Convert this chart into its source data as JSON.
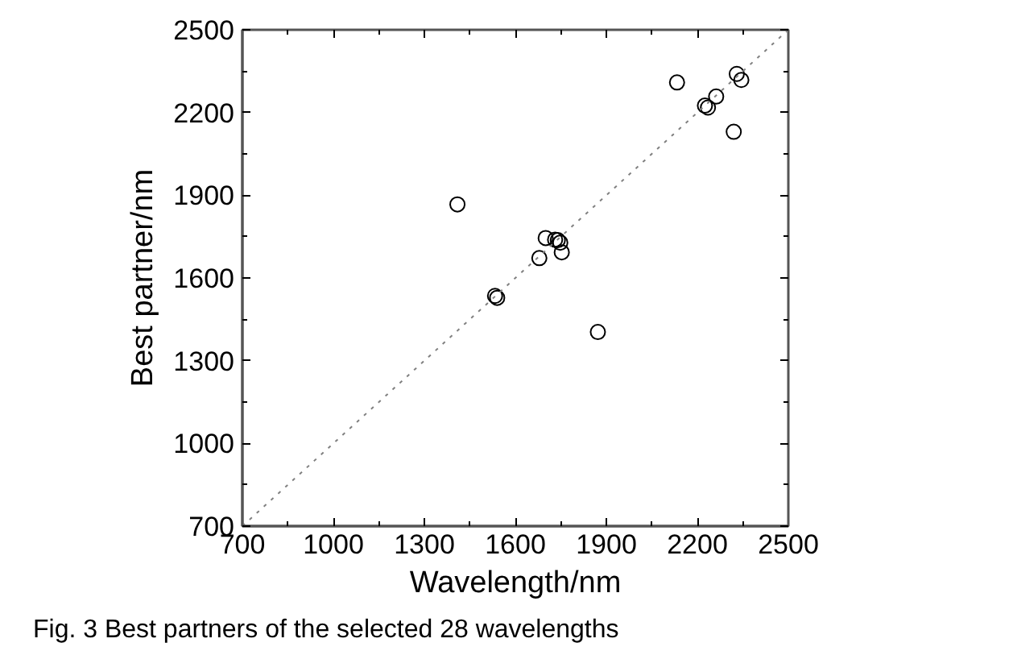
{
  "chart_data": {
    "type": "scatter",
    "xlabel": "Wavelength/nm",
    "ylabel": "Best partner/nm",
    "annotations": [
      "Fig. 3  Best partners of the selected 28 wavelengths"
    ],
    "x": [
      1409,
      1533,
      1540,
      1679,
      1700,
      1731,
      1740,
      1748,
      1753,
      1872,
      2133,
      2225,
      2235,
      2262,
      2330,
      2345,
      2320
    ],
    "series": [
      {
        "color": "#000000",
        "values": [
          1867,
          1535,
          1528,
          1672,
          1745,
          1739,
          1737,
          1728,
          1693,
          1404,
          2309,
          2225,
          2218,
          2258,
          2340,
          2318,
          2130
        ]
      },
      {
        "type": "line",
        "color": "#808080",
        "line_style": "dotted",
        "marker": "none",
        "x": [
          700,
          2500
        ],
        "values": [
          700,
          2500
        ]
      }
    ],
    "marker": "circle",
    "xlim": [
      700,
      2500
    ],
    "ylim": [
      700,
      2500
    ],
    "xticks": [
      700,
      1000,
      1300,
      1600,
      1900,
      2200,
      2500
    ],
    "yticks": [
      700,
      1000,
      1300,
      1600,
      1900,
      2200,
      2500
    ],
    "grid": false
  }
}
